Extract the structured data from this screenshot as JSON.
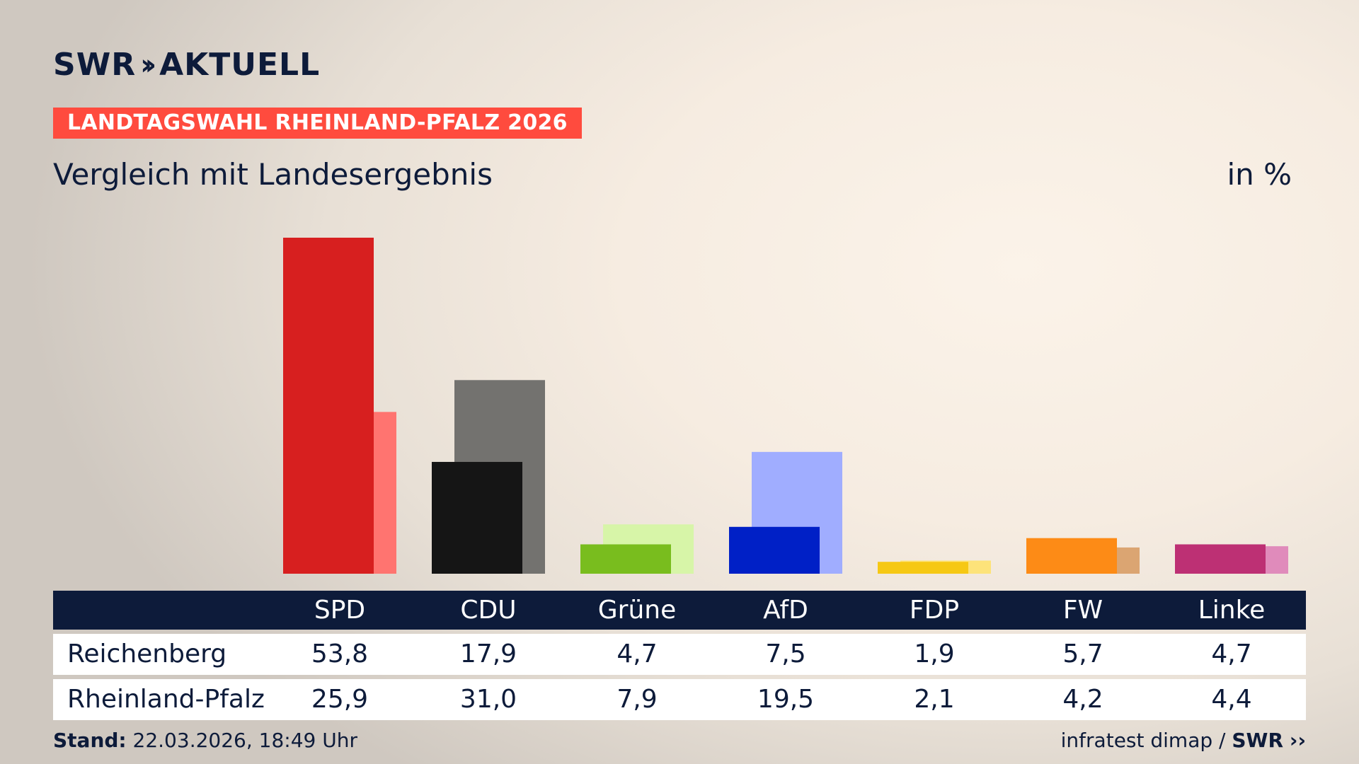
{
  "header": {
    "brand": "SWR",
    "brand_chevrons": "»",
    "brand_suffix": "AKTUELL",
    "badge": "LANDTAGSWAHL RHEINLAND-PFALZ 2026",
    "subtitle": "Vergleich mit Landesergebnis",
    "unit": "in %"
  },
  "chart_data": {
    "type": "bar",
    "categories": [
      "SPD",
      "CDU",
      "Grüne",
      "AfD",
      "FDP",
      "FW",
      "Linke"
    ],
    "series": [
      {
        "name": "Reichenberg",
        "values": [
          53.8,
          17.9,
          4.7,
          7.5,
          1.9,
          5.7,
          4.7
        ]
      },
      {
        "name": "Rheinland-Pfalz",
        "values": [
          25.9,
          31.0,
          7.9,
          19.5,
          2.1,
          4.2,
          4.4
        ]
      }
    ],
    "value_labels": {
      "Reichenberg": [
        "53,8",
        "17,9",
        "4,7",
        "7,5",
        "1,9",
        "5,7",
        "4,7"
      ],
      "Rheinland-Pfalz": [
        "25,9",
        "31,0",
        "7,9",
        "19,5",
        "2,1",
        "4,2",
        "4,4"
      ]
    },
    "colors": {
      "primary": [
        "#d71f1f",
        "#151515",
        "#79bd1e",
        "#0020c6",
        "#f6c814",
        "#fd8b16",
        "#bd3074"
      ],
      "secondary": [
        "#ff7470",
        "#73726f",
        "#d7f5a8",
        "#a0adff",
        "#fde37a",
        "#dba572",
        "#e08bbb"
      ]
    },
    "ylim": [
      0,
      55
    ]
  },
  "footer": {
    "stand_label": "Stand:",
    "stand_value": "22.03.2026, 18:49 Uhr",
    "source": "infratest dimap /",
    "source_brand": "SWR"
  }
}
